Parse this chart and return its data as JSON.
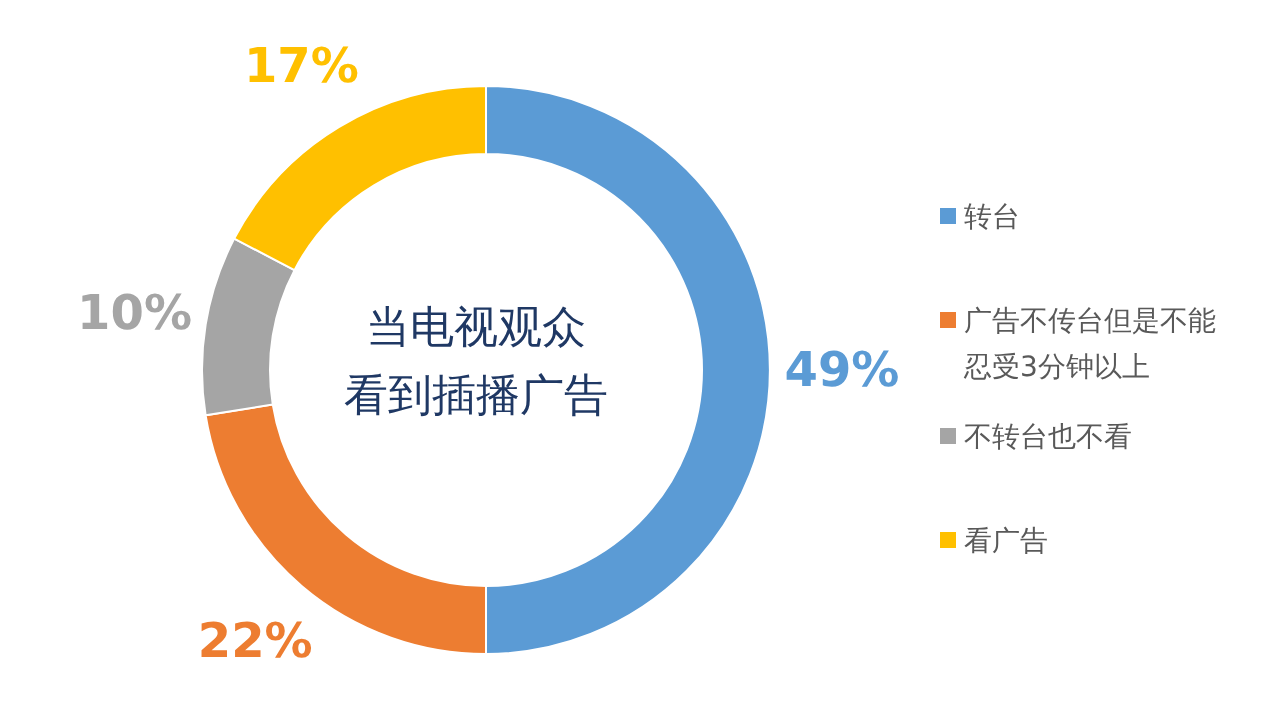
{
  "chart_data": {
    "type": "donut",
    "title": "当电视观众看到插播广告",
    "categories": [
      "转台",
      "广告不传台但是不能忍受3分钟以上",
      "不转台也不看",
      "看广告"
    ],
    "values": [
      49,
      22,
      10,
      17
    ],
    "colors": [
      "#5b9bd5",
      "#ed7d31",
      "#a5a5a5",
      "#ffc000"
    ],
    "value_labels": [
      "49%",
      "22%",
      "10%",
      "17%"
    ],
    "legend": "right"
  }
}
